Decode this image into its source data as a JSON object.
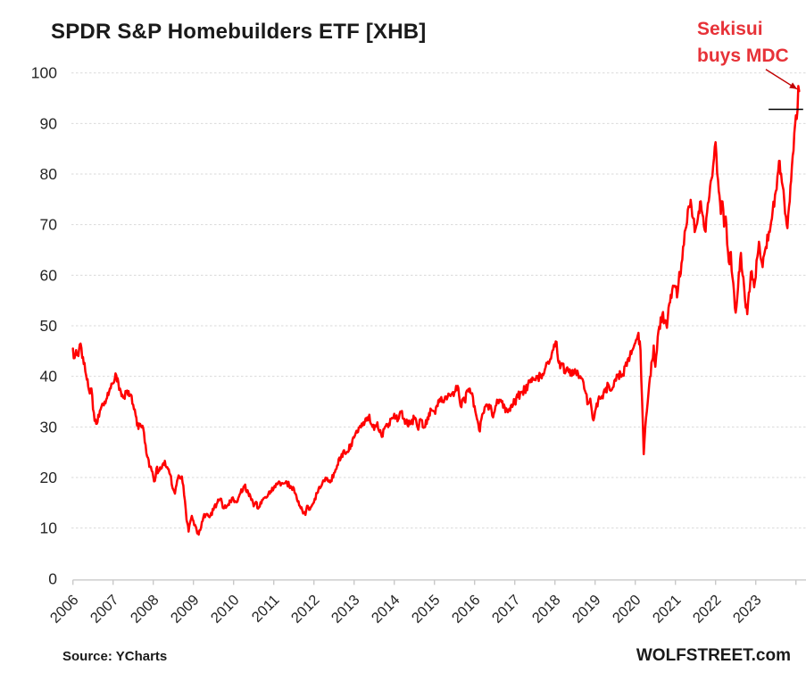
{
  "title": "SPDR S&P Homebuilders ETF [XHB]",
  "annotation": {
    "line1": "Sekisui",
    "line2": "buys MDC"
  },
  "source": "Source: YCharts",
  "branding": "WOLFSTREET.com",
  "colors": {
    "line": "#ff0000",
    "annotation_text": "#e73238",
    "arrow": "#c00000",
    "grid": "#d9d9d9",
    "axis_line": "#c9c9c9",
    "axis_text": "#262626",
    "title_text": "#1a1a1a",
    "reference_line": "#000000",
    "background": "#ffffff"
  },
  "chart_data": {
    "type": "line",
    "title": "SPDR S&P Homebuilders ETF [XHB]",
    "xlabel": "",
    "ylabel": "",
    "legend": "none",
    "grid": "horizontal-dashed",
    "ylim": [
      0,
      100
    ],
    "xlim": [
      2006,
      2024.25
    ],
    "y_ticks": [
      0,
      10,
      20,
      30,
      40,
      50,
      60,
      70,
      80,
      90,
      100
    ],
    "x_ticks": [
      2006,
      2007,
      2008,
      2009,
      2010,
      2011,
      2012,
      2013,
      2014,
      2015,
      2016,
      2017,
      2018,
      2019,
      2020,
      2021,
      2022,
      2023
    ],
    "reference_line": {
      "value": 92.8,
      "t_start": 2023.32,
      "t_end": 2024.18
    },
    "annotation_arrow": {
      "from_t": 2023.25,
      "from_v": 100.7,
      "to_t": 2024.03,
      "to_v": 96.8
    },
    "series": [
      {
        "name": "XHB",
        "color": "#ff0000",
        "points": [
          [
            2006.0,
            45.5
          ],
          [
            2006.04,
            43.6
          ],
          [
            2006.08,
            45.2
          ],
          [
            2006.12,
            44.2
          ],
          [
            2006.17,
            46.3
          ],
          [
            2006.21,
            45.6
          ],
          [
            2006.25,
            43.8
          ],
          [
            2006.33,
            40.2
          ],
          [
            2006.38,
            38.0
          ],
          [
            2006.42,
            36.6
          ],
          [
            2006.46,
            37.6
          ],
          [
            2006.5,
            33.5
          ],
          [
            2006.54,
            31.2
          ],
          [
            2006.58,
            30.6
          ],
          [
            2006.63,
            32.4
          ],
          [
            2006.67,
            33.2
          ],
          [
            2006.75,
            34.6
          ],
          [
            2006.83,
            35.4
          ],
          [
            2006.92,
            37.6
          ],
          [
            2007.0,
            38.6
          ],
          [
            2007.04,
            39.4
          ],
          [
            2007.08,
            40.2
          ],
          [
            2007.13,
            38.8
          ],
          [
            2007.17,
            37.6
          ],
          [
            2007.25,
            35.8
          ],
          [
            2007.33,
            37.0
          ],
          [
            2007.42,
            36.4
          ],
          [
            2007.5,
            34.4
          ],
          [
            2007.58,
            31.8
          ],
          [
            2007.63,
            29.6
          ],
          [
            2007.67,
            30.6
          ],
          [
            2007.75,
            29.8
          ],
          [
            2007.79,
            27.0
          ],
          [
            2007.83,
            24.8
          ],
          [
            2007.92,
            22.2
          ],
          [
            2008.0,
            20.2
          ],
          [
            2008.04,
            19.3
          ],
          [
            2008.08,
            21.8
          ],
          [
            2008.13,
            21.2
          ],
          [
            2008.17,
            22.0
          ],
          [
            2008.25,
            22.8
          ],
          [
            2008.29,
            23.3
          ],
          [
            2008.33,
            22.0
          ],
          [
            2008.42,
            20.6
          ],
          [
            2008.5,
            17.6
          ],
          [
            2008.54,
            16.8
          ],
          [
            2008.58,
            18.6
          ],
          [
            2008.63,
            20.4
          ],
          [
            2008.67,
            19.8
          ],
          [
            2008.71,
            20.2
          ],
          [
            2008.75,
            18.4
          ],
          [
            2008.79,
            15.4
          ],
          [
            2008.83,
            11.6
          ],
          [
            2008.88,
            9.3
          ],
          [
            2008.92,
            11.2
          ],
          [
            2008.96,
            12.4
          ],
          [
            2009.0,
            11.4
          ],
          [
            2009.04,
            10.6
          ],
          [
            2009.08,
            9.6
          ],
          [
            2009.13,
            8.7
          ],
          [
            2009.17,
            9.6
          ],
          [
            2009.21,
            11.2
          ],
          [
            2009.25,
            12.2
          ],
          [
            2009.33,
            12.8
          ],
          [
            2009.42,
            12.4
          ],
          [
            2009.5,
            13.6
          ],
          [
            2009.58,
            14.8
          ],
          [
            2009.63,
            15.4
          ],
          [
            2009.67,
            15.8
          ],
          [
            2009.71,
            15.0
          ],
          [
            2009.75,
            13.9
          ],
          [
            2009.83,
            14.3
          ],
          [
            2009.92,
            15.4
          ],
          [
            2010.0,
            15.6
          ],
          [
            2010.08,
            15.1
          ],
          [
            2010.17,
            16.9
          ],
          [
            2010.25,
            18.2
          ],
          [
            2010.29,
            18.6
          ],
          [
            2010.33,
            17.1
          ],
          [
            2010.42,
            16.2
          ],
          [
            2010.5,
            14.3
          ],
          [
            2010.54,
            14.9
          ],
          [
            2010.63,
            14.1
          ],
          [
            2010.67,
            15.1
          ],
          [
            2010.75,
            15.9
          ],
          [
            2010.83,
            16.1
          ],
          [
            2010.92,
            17.3
          ],
          [
            2011.0,
            17.9
          ],
          [
            2011.08,
            18.8
          ],
          [
            2011.13,
            19.2
          ],
          [
            2011.17,
            18.4
          ],
          [
            2011.25,
            18.8
          ],
          [
            2011.33,
            18.9
          ],
          [
            2011.42,
            18.3
          ],
          [
            2011.5,
            17.9
          ],
          [
            2011.58,
            15.6
          ],
          [
            2011.67,
            13.9
          ],
          [
            2011.75,
            13.1
          ],
          [
            2011.79,
            12.6
          ],
          [
            2011.83,
            14.4
          ],
          [
            2011.88,
            13.6
          ],
          [
            2011.92,
            14.1
          ],
          [
            2012.0,
            15.1
          ],
          [
            2012.08,
            16.9
          ],
          [
            2012.17,
            18.1
          ],
          [
            2012.25,
            19.4
          ],
          [
            2012.33,
            19.9
          ],
          [
            2012.42,
            19.4
          ],
          [
            2012.5,
            20.9
          ],
          [
            2012.58,
            22.4
          ],
          [
            2012.67,
            23.9
          ],
          [
            2012.75,
            25.4
          ],
          [
            2012.83,
            25.1
          ],
          [
            2012.92,
            26.6
          ],
          [
            2013.0,
            27.9
          ],
          [
            2013.08,
            28.9
          ],
          [
            2013.17,
            29.9
          ],
          [
            2013.25,
            30.4
          ],
          [
            2013.33,
            31.9
          ],
          [
            2013.38,
            32.4
          ],
          [
            2013.42,
            30.6
          ],
          [
            2013.5,
            29.4
          ],
          [
            2013.58,
            30.9
          ],
          [
            2013.67,
            28.6
          ],
          [
            2013.71,
            28.1
          ],
          [
            2013.75,
            29.6
          ],
          [
            2013.83,
            30.4
          ],
          [
            2013.92,
            31.6
          ],
          [
            2014.0,
            32.6
          ],
          [
            2014.08,
            31.1
          ],
          [
            2014.17,
            32.9
          ],
          [
            2014.25,
            31.6
          ],
          [
            2014.33,
            30.4
          ],
          [
            2014.42,
            30.9
          ],
          [
            2014.5,
            31.6
          ],
          [
            2014.58,
            29.9
          ],
          [
            2014.67,
            31.4
          ],
          [
            2014.75,
            29.9
          ],
          [
            2014.83,
            31.9
          ],
          [
            2014.92,
            33.4
          ],
          [
            2015.0,
            33.1
          ],
          [
            2015.08,
            34.1
          ],
          [
            2015.17,
            35.9
          ],
          [
            2015.25,
            35.4
          ],
          [
            2015.33,
            35.9
          ],
          [
            2015.42,
            36.4
          ],
          [
            2015.5,
            36.9
          ],
          [
            2015.58,
            38.1
          ],
          [
            2015.63,
            35.1
          ],
          [
            2015.67,
            33.9
          ],
          [
            2015.71,
            35.6
          ],
          [
            2015.75,
            35.1
          ],
          [
            2015.83,
            37.1
          ],
          [
            2015.88,
            37.6
          ],
          [
            2015.92,
            36.6
          ],
          [
            2016.0,
            34.1
          ],
          [
            2016.08,
            31.1
          ],
          [
            2016.13,
            29.1
          ],
          [
            2016.17,
            31.6
          ],
          [
            2016.25,
            33.9
          ],
          [
            2016.33,
            34.1
          ],
          [
            2016.42,
            33.4
          ],
          [
            2016.46,
            31.9
          ],
          [
            2016.5,
            33.1
          ],
          [
            2016.58,
            35.1
          ],
          [
            2016.67,
            34.9
          ],
          [
            2016.75,
            33.9
          ],
          [
            2016.83,
            32.9
          ],
          [
            2016.92,
            34.4
          ],
          [
            2017.0,
            34.9
          ],
          [
            2017.08,
            35.9
          ],
          [
            2017.17,
            36.9
          ],
          [
            2017.25,
            37.4
          ],
          [
            2017.33,
            38.4
          ],
          [
            2017.42,
            38.9
          ],
          [
            2017.5,
            39.4
          ],
          [
            2017.58,
            40.1
          ],
          [
            2017.67,
            39.6
          ],
          [
            2017.75,
            41.4
          ],
          [
            2017.83,
            42.9
          ],
          [
            2017.92,
            44.4
          ],
          [
            2018.0,
            45.9
          ],
          [
            2018.04,
            46.8
          ],
          [
            2018.08,
            43.1
          ],
          [
            2018.13,
            41.6
          ],
          [
            2018.17,
            42.6
          ],
          [
            2018.25,
            40.6
          ],
          [
            2018.33,
            41.1
          ],
          [
            2018.42,
            40.1
          ],
          [
            2018.5,
            41.4
          ],
          [
            2018.58,
            40.4
          ],
          [
            2018.67,
            39.6
          ],
          [
            2018.75,
            37.1
          ],
          [
            2018.83,
            34.6
          ],
          [
            2018.88,
            35.6
          ],
          [
            2018.92,
            33.1
          ],
          [
            2018.96,
            31.3
          ],
          [
            2019.0,
            33.1
          ],
          [
            2019.08,
            35.4
          ],
          [
            2019.17,
            36.1
          ],
          [
            2019.25,
            36.9
          ],
          [
            2019.33,
            38.4
          ],
          [
            2019.42,
            37.4
          ],
          [
            2019.5,
            39.4
          ],
          [
            2019.58,
            40.4
          ],
          [
            2019.67,
            40.1
          ],
          [
            2019.75,
            42.1
          ],
          [
            2019.83,
            43.6
          ],
          [
            2019.92,
            45.1
          ],
          [
            2020.0,
            46.6
          ],
          [
            2020.08,
            48.6
          ],
          [
            2020.13,
            45.1
          ],
          [
            2020.17,
            35.1
          ],
          [
            2020.21,
            24.6
          ],
          [
            2020.25,
            30.1
          ],
          [
            2020.29,
            33.1
          ],
          [
            2020.33,
            36.6
          ],
          [
            2020.42,
            43.1
          ],
          [
            2020.46,
            46.1
          ],
          [
            2020.5,
            41.9
          ],
          [
            2020.54,
            45.1
          ],
          [
            2020.58,
            49.1
          ],
          [
            2020.67,
            52.1
          ],
          [
            2020.75,
            51.1
          ],
          [
            2020.79,
            49.6
          ],
          [
            2020.83,
            53.6
          ],
          [
            2020.92,
            57.1
          ],
          [
            2021.0,
            57.6
          ],
          [
            2021.04,
            55.6
          ],
          [
            2021.08,
            58.6
          ],
          [
            2021.17,
            63.1
          ],
          [
            2021.25,
            69.1
          ],
          [
            2021.33,
            73.6
          ],
          [
            2021.38,
            74.9
          ],
          [
            2021.42,
            71.6
          ],
          [
            2021.5,
            69.1
          ],
          [
            2021.58,
            72.6
          ],
          [
            2021.63,
            74.6
          ],
          [
            2021.67,
            72.1
          ],
          [
            2021.71,
            69.6
          ],
          [
            2021.75,
            68.6
          ],
          [
            2021.83,
            74.6
          ],
          [
            2021.88,
            78.6
          ],
          [
            2021.92,
            79.6
          ],
          [
            2021.96,
            83.1
          ],
          [
            2022.0,
            86.3
          ],
          [
            2022.04,
            80.1
          ],
          [
            2022.08,
            76.6
          ],
          [
            2022.13,
            72.1
          ],
          [
            2022.17,
            74.6
          ],
          [
            2022.21,
            69.6
          ],
          [
            2022.25,
            71.6
          ],
          [
            2022.29,
            66.1
          ],
          [
            2022.33,
            62.6
          ],
          [
            2022.38,
            64.6
          ],
          [
            2022.42,
            59.6
          ],
          [
            2022.46,
            56.6
          ],
          [
            2022.5,
            52.6
          ],
          [
            2022.54,
            55.6
          ],
          [
            2022.58,
            60.6
          ],
          [
            2022.63,
            64.4
          ],
          [
            2022.67,
            60.1
          ],
          [
            2022.71,
            57.6
          ],
          [
            2022.75,
            53.6
          ],
          [
            2022.79,
            52.3
          ],
          [
            2022.83,
            56.6
          ],
          [
            2022.88,
            60.6
          ],
          [
            2022.92,
            59.1
          ],
          [
            2022.96,
            57.6
          ],
          [
            2023.0,
            59.6
          ],
          [
            2023.04,
            63.6
          ],
          [
            2023.08,
            66.6
          ],
          [
            2023.13,
            63.1
          ],
          [
            2023.17,
            61.6
          ],
          [
            2023.21,
            64.1
          ],
          [
            2023.25,
            65.6
          ],
          [
            2023.33,
            68.6
          ],
          [
            2023.42,
            72.6
          ],
          [
            2023.5,
            76.6
          ],
          [
            2023.54,
            79.6
          ],
          [
            2023.58,
            82.6
          ],
          [
            2023.63,
            80.1
          ],
          [
            2023.67,
            77.6
          ],
          [
            2023.71,
            74.6
          ],
          [
            2023.75,
            71.6
          ],
          [
            2023.79,
            69.3
          ],
          [
            2023.83,
            73.6
          ],
          [
            2023.88,
            78.6
          ],
          [
            2023.92,
            83.6
          ],
          [
            2023.96,
            88.1
          ],
          [
            2024.0,
            91.6
          ],
          [
            2024.02,
            90.9
          ],
          [
            2024.04,
            92.6
          ],
          [
            2024.06,
            97.4
          ],
          [
            2024.08,
            96.4
          ]
        ]
      }
    ]
  }
}
